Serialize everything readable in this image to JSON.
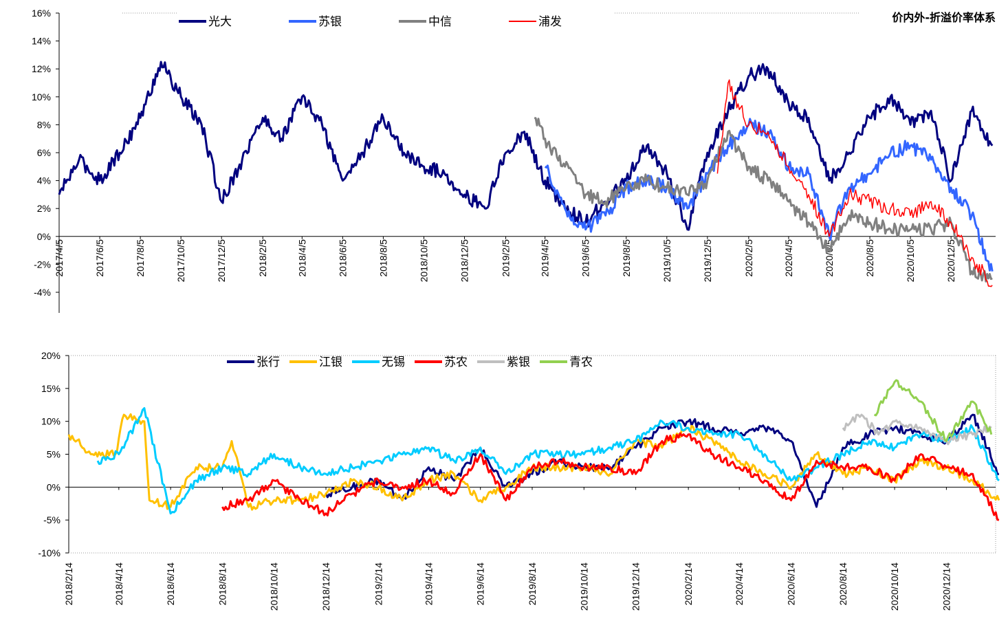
{
  "chart_data": [
    {
      "type": "line",
      "title": "价内外-折溢价率体系",
      "ylim": [
        -4,
        16
      ],
      "y_ticks": [
        "16%",
        "14%",
        "12%",
        "10%",
        "8%",
        "6%",
        "4%",
        "2%",
        "0%",
        "-2%",
        "-4%"
      ],
      "x_ticks": [
        "2017/4/5",
        "2017/6/5",
        "2017/8/5",
        "2017/10/5",
        "2017/12/5",
        "2018/2/5",
        "2018/4/5",
        "2018/6/5",
        "2018/8/5",
        "2018/10/5",
        "2018/12/5",
        "2019/2/5",
        "2019/4/5",
        "2019/6/5",
        "2019/8/5",
        "2019/10/5",
        "2019/12/5",
        "2020/2/5",
        "2020/4/5",
        "2020/6/5",
        "2020/8/5",
        "2020/10/5",
        "2020/12/5"
      ],
      "series": [
        {
          "name": "光大",
          "color": "#00007F",
          "x": [
            "2017/4/5",
            "2017/5/5",
            "2017/6/5",
            "2017/7/5",
            "2017/8/5",
            "2017/9/5",
            "2017/10/5",
            "2017/11/5",
            "2017/12/5",
            "2018/1/5",
            "2018/2/5",
            "2018/3/5",
            "2018/4/5",
            "2018/5/5",
            "2018/6/5",
            "2018/7/5",
            "2018/8/5",
            "2018/9/5",
            "2018/10/5",
            "2018/11/5",
            "2018/12/5",
            "2019/1/5",
            "2019/2/5",
            "2019/3/5",
            "2019/4/5",
            "2019/5/5",
            "2019/6/5",
            "2019/7/5",
            "2019/8/5",
            "2019/9/5",
            "2019/10/5",
            "2019/11/5",
            "2019/12/5",
            "2020/1/5",
            "2020/2/5",
            "2020/3/5",
            "2020/4/5",
            "2020/5/5",
            "2020/6/5",
            "2020/7/5",
            "2020/8/5",
            "2020/9/5",
            "2020/10/5",
            "2020/11/5",
            "2020/12/5",
            "2021/1/5",
            "2021/2/5"
          ],
          "values": [
            3.0,
            5.5,
            4.0,
            6.0,
            8.5,
            12.5,
            10.0,
            8.0,
            2.5,
            5.5,
            8.5,
            7.0,
            10.0,
            8.0,
            4.0,
            6.0,
            8.5,
            6.0,
            5.0,
            4.5,
            3.0,
            2.0,
            6.0,
            7.5,
            4.0,
            2.0,
            1.0,
            2.5,
            4.0,
            6.5,
            4.5,
            0.5,
            6.0,
            9.0,
            11.5,
            12.0,
            9.5,
            8.5,
            4.0,
            6.0,
            8.5,
            10.0,
            8.0,
            9.0,
            4.0,
            9.0,
            6.5
          ]
        },
        {
          "name": "苏银",
          "color": "#3366FF",
          "x": [
            "2019/4/5",
            "2019/5/5",
            "2019/6/5",
            "2019/7/5",
            "2019/8/5",
            "2019/9/5",
            "2019/10/5",
            "2019/11/5",
            "2019/12/5",
            "2020/1/5",
            "2020/2/5",
            "2020/3/5",
            "2020/4/5",
            "2020/5/5",
            "2020/6/5",
            "2020/7/5",
            "2020/8/5",
            "2020/9/5",
            "2020/10/5",
            "2020/11/5",
            "2020/12/5",
            "2021/1/5",
            "2021/2/5"
          ],
          "values": [
            5.0,
            2.0,
            0.5,
            1.5,
            3.5,
            4.0,
            3.5,
            2.0,
            4.5,
            6.5,
            8.0,
            7.5,
            5.0,
            4.5,
            0.0,
            3.5,
            4.5,
            6.0,
            6.5,
            5.5,
            3.5,
            1.5,
            -2.5
          ]
        },
        {
          "name": "中信",
          "color": "#808080",
          "x": [
            "2019/3/20",
            "2019/4/5",
            "2019/5/5",
            "2019/6/5",
            "2019/7/5",
            "2019/8/5",
            "2019/9/5",
            "2019/10/5",
            "2019/11/5",
            "2019/12/5",
            "2020/1/5",
            "2020/2/5",
            "2020/3/5",
            "2020/4/5",
            "2020/5/5",
            "2020/6/5",
            "2020/7/5",
            "2020/8/5",
            "2020/9/5",
            "2020/10/5",
            "2020/11/5",
            "2020/12/5",
            "2021/1/5",
            "2021/2/5"
          ],
          "values": [
            8.5,
            7.0,
            5.0,
            3.0,
            2.5,
            3.5,
            4.0,
            3.5,
            3.0,
            4.0,
            7.5,
            5.0,
            4.0,
            2.5,
            1.0,
            -1.0,
            1.5,
            1.0,
            0.5,
            0.5,
            0.5,
            1.0,
            -2.5,
            -3.0
          ]
        },
        {
          "name": "浦发",
          "color": "#FF0000",
          "x": [
            "2019/12/20",
            "2020/1/5",
            "2020/1/20",
            "2020/2/5",
            "2020/3/5",
            "2020/4/5",
            "2020/5/5",
            "2020/6/5",
            "2020/7/5",
            "2020/8/5",
            "2020/9/5",
            "2020/10/5",
            "2020/11/5",
            "2020/12/5",
            "2021/1/5",
            "2021/2/5"
          ],
          "values": [
            4.5,
            11.0,
            9.5,
            8.0,
            7.5,
            5.0,
            3.0,
            0.0,
            3.0,
            2.5,
            2.0,
            1.5,
            2.5,
            1.0,
            -1.5,
            -3.5
          ]
        }
      ]
    },
    {
      "type": "line",
      "ylim": [
        -10,
        20
      ],
      "y_ticks": [
        "20%",
        "15%",
        "10%",
        "5%",
        "0%",
        "-5%",
        "-10%"
      ],
      "x_ticks": [
        "2018/2/14",
        "2018/4/14",
        "2018/6/14",
        "2018/8/14",
        "2018/10/14",
        "2018/12/14",
        "2019/2/14",
        "2019/4/14",
        "2019/6/14",
        "2019/8/14",
        "2019/10/14",
        "2019/12/14",
        "2020/2/14",
        "2020/4/14",
        "2020/6/14",
        "2020/8/14",
        "2020/10/14",
        "2020/12/14"
      ],
      "series": [
        {
          "name": "张行",
          "color": "#00007F",
          "x": [
            "2018/12/14",
            "2019/1/14",
            "2019/2/14",
            "2019/3/14",
            "2019/4/14",
            "2019/5/14",
            "2019/6/14",
            "2019/7/14",
            "2019/8/14",
            "2019/9/14",
            "2019/10/14",
            "2019/11/14",
            "2019/12/14",
            "2020/1/14",
            "2020/2/14",
            "2020/3/14",
            "2020/4/14",
            "2020/5/14",
            "2020/6/14",
            "2020/7/14",
            "2020/8/14",
            "2020/9/14",
            "2020/10/14",
            "2020/11/14",
            "2020/12/14",
            "2021/1/14",
            "2021/2/14"
          ],
          "values": [
            -1,
            0,
            1,
            -2,
            3,
            1,
            6,
            0,
            2,
            4,
            3,
            3,
            6,
            9,
            10,
            9,
            8,
            9,
            7,
            -3,
            6,
            8,
            9,
            8,
            7,
            11,
            2
          ]
        },
        {
          "name": "江银",
          "color": "#FFC000",
          "x": [
            "2018/2/14",
            "2018/3/14",
            "2018/4/10",
            "2018/4/20",
            "2018/5/14",
            "2018/5/20",
            "2018/6/14",
            "2018/7/14",
            "2018/8/14",
            "2018/8/25",
            "2018/9/14",
            "2018/10/14",
            "2018/11/14",
            "2018/12/14",
            "2019/1/14",
            "2019/2/14",
            "2019/3/14",
            "2019/4/14",
            "2019/5/14",
            "2019/6/14",
            "2019/7/14",
            "2019/8/14",
            "2019/9/14",
            "2019/10/14",
            "2019/11/14",
            "2019/12/14",
            "2020/1/14",
            "2020/2/14",
            "2020/3/14",
            "2020/4/14",
            "2020/5/14",
            "2020/6/14",
            "2020/7/14",
            "2020/8/14",
            "2020/9/14",
            "2020/10/14",
            "2020/11/14",
            "2020/12/14",
            "2021/1/14",
            "2021/2/14"
          ],
          "values": [
            8,
            5,
            5,
            11,
            10,
            -2,
            -3,
            3,
            3,
            7,
            -3,
            -2,
            -2,
            -1,
            1,
            0,
            -2,
            1,
            2,
            -2,
            0,
            3,
            3,
            3,
            2,
            7,
            6,
            9,
            7,
            4,
            2,
            0,
            5,
            2,
            3,
            1,
            4,
            3,
            1,
            -2
          ]
        },
        {
          "name": "无锡",
          "color": "#00CCFF",
          "x": [
            "2018/3/20",
            "2018/4/14",
            "2018/5/14",
            "2018/6/14",
            "2018/7/14",
            "2018/8/14",
            "2018/9/14",
            "2018/10/14",
            "2018/11/14",
            "2018/12/14",
            "2019/1/14",
            "2019/2/14",
            "2019/3/14",
            "2019/4/14",
            "2019/5/14",
            "2019/6/14",
            "2019/7/14",
            "2019/8/14",
            "2019/9/14",
            "2019/10/14",
            "2019/11/14",
            "2019/12/14",
            "2020/1/14",
            "2020/2/14",
            "2020/3/14",
            "2020/4/14",
            "2020/5/14",
            "2020/6/14",
            "2020/7/14",
            "2020/8/14",
            "2020/9/14",
            "2020/10/14",
            "2020/11/14",
            "2020/12/14",
            "2021/1/14",
            "2021/2/14"
          ],
          "values": [
            4,
            5,
            12,
            -4,
            1,
            3,
            2,
            5,
            3,
            2,
            3,
            4,
            5,
            6,
            4,
            6,
            2,
            5,
            5,
            5,
            6,
            7,
            10,
            9,
            8,
            8,
            5,
            1,
            3,
            5,
            7,
            6,
            8,
            7,
            9,
            1
          ]
        },
        {
          "name": "苏农",
          "color": "#FF0000",
          "x": [
            "2018/8/14",
            "2018/9/14",
            "2018/10/14",
            "2018/11/14",
            "2018/12/14",
            "2019/1/14",
            "2019/2/14",
            "2019/3/14",
            "2019/4/14",
            "2019/5/14",
            "2019/6/14",
            "2019/7/14",
            "2019/8/14",
            "2019/9/14",
            "2019/10/14",
            "2019/11/14",
            "2019/12/14",
            "2020/1/14",
            "2020/2/14",
            "2020/3/14",
            "2020/4/14",
            "2020/5/14",
            "2020/6/14",
            "2020/7/14",
            "2020/8/14",
            "2020/9/14",
            "2020/10/14",
            "2020/11/14",
            "2020/12/14",
            "2021/1/14",
            "2021/2/14"
          ],
          "values": [
            -3,
            -2,
            1,
            -2,
            -4,
            -1,
            1,
            0,
            1,
            -1,
            5,
            -2,
            3,
            4,
            3,
            3,
            2,
            7,
            8,
            5,
            3,
            1,
            -2,
            4,
            3,
            3,
            1,
            5,
            3,
            2,
            -5
          ]
        },
        {
          "name": "紫银",
          "color": "#BFBFBF",
          "x": [
            "2020/8/14",
            "2020/9/5",
            "2020/9/25",
            "2020/10/14",
            "2020/11/14",
            "2020/12/14",
            "2021/1/14",
            "2021/2/5"
          ],
          "values": [
            9,
            11,
            8,
            10,
            9,
            7,
            8,
            9
          ]
        },
        {
          "name": "青农",
          "color": "#92D050",
          "x": [
            "2020/9/20",
            "2020/10/14",
            "2020/10/25",
            "2020/11/14",
            "2020/12/14",
            "2021/1/14",
            "2021/2/5"
          ],
          "values": [
            11,
            16,
            15,
            13,
            7,
            13,
            8
          ]
        }
      ]
    }
  ]
}
